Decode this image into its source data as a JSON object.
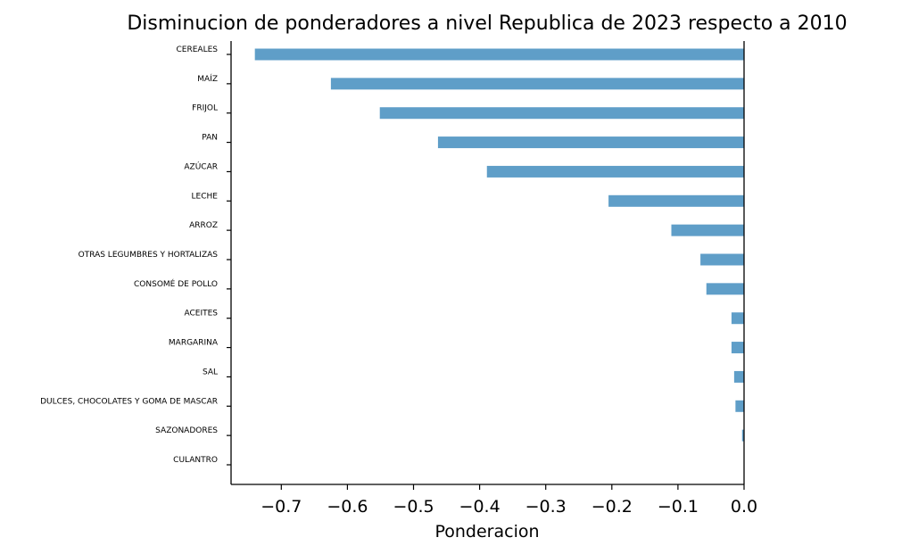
{
  "chart_data": {
    "type": "bar",
    "orientation": "horizontal",
    "title": "Disminucion de ponderadores a nivel Republica de 2023 respecto a 2010",
    "xlabel": "Ponderacion",
    "ylabel": "",
    "xlim": [
      -0.776,
      0.0
    ],
    "xticks": [
      -0.7,
      -0.6,
      -0.5,
      -0.4,
      -0.3,
      -0.2,
      -0.1,
      0.0
    ],
    "xtick_labels": [
      "−0.7",
      "−0.6",
      "−0.5",
      "−0.4",
      "−0.3",
      "−0.2",
      "−0.1",
      "0.0"
    ],
    "categories": [
      "CEREALES",
      "MAÍZ",
      "FRIJOL",
      "PAN",
      "AZÚCAR",
      "LECHE",
      "ARROZ",
      "OTRAS LEGUMBRES Y HORTALIZAS",
      "CONSOMÉ DE POLLO",
      "ACEITES",
      "MARGARINA",
      "SAL",
      "DULCES, CHOCOLATES Y GOMA DE MASCAR",
      "SAZONADORES",
      "CULANTRO"
    ],
    "values": [
      -0.74,
      -0.625,
      -0.551,
      -0.463,
      -0.389,
      -0.205,
      -0.11,
      -0.066,
      -0.057,
      -0.019,
      -0.019,
      -0.015,
      -0.013,
      -0.003,
      0.0
    ],
    "bar_color": "#5f9ec8",
    "grid": false,
    "legend": "none"
  }
}
